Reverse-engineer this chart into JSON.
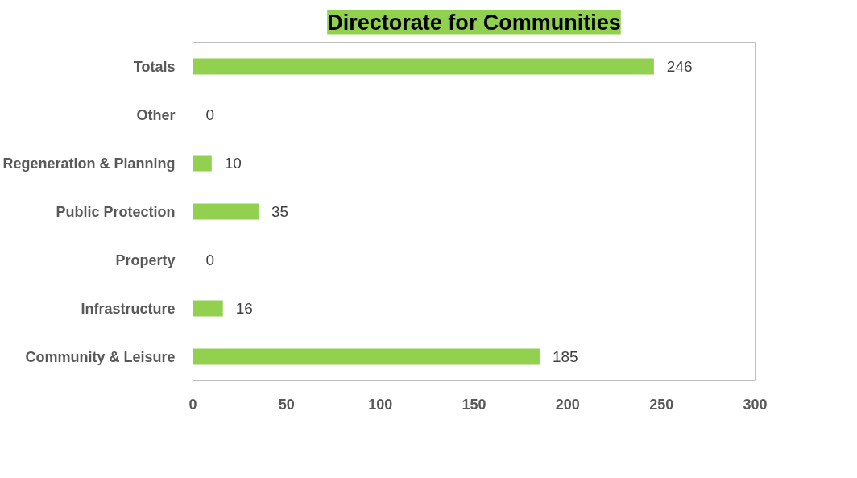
{
  "chart_data": {
    "type": "bar",
    "orientation": "horizontal",
    "title": "Directorate for Communities",
    "categories": [
      "Totals",
      "Other",
      "Regeneration & Planning",
      "Public Protection",
      "Property",
      "Infrastructure",
      "Community & Leisure"
    ],
    "values": [
      246,
      0,
      10,
      35,
      0,
      16,
      185
    ],
    "color": "#92d050",
    "xlim": [
      0,
      300
    ],
    "xticks": [
      0,
      50,
      100,
      150,
      200,
      250,
      300
    ],
    "grid": false,
    "data_labels": true
  }
}
